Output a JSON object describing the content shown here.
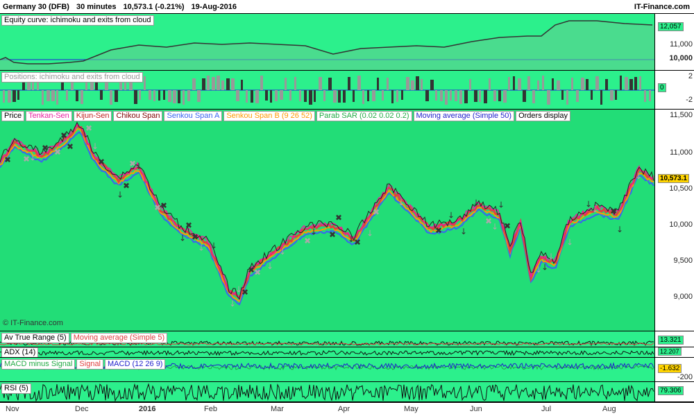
{
  "header": {
    "instrument": "Germany 30 (DFB)",
    "timeframe": "30 minutes",
    "last": "10,573.1 (-0.21%)",
    "date": "19-Aug-2016",
    "brand": "IT-Finance.com"
  },
  "colors": {
    "panel_green": "#2cf08c",
    "price_green": "#22dd77",
    "tenkan": "#e91ea0",
    "kijun": "#e04040",
    "senkou_a": "#3a64f0",
    "senkou_b": "#ff9900",
    "ma": "#1010dd"
  },
  "equity": {
    "label": "Equity curve: ichimoku and exits from cloud",
    "ticks": [
      "11,000",
      "10,000"
    ],
    "last_tag": "12,057"
  },
  "positions": {
    "label": "Positions: ichimoku and exits from cloud",
    "ticks": [
      "2",
      "-2"
    ],
    "last_tag": "0"
  },
  "price": {
    "labels": [
      "Price",
      "Tenkan-Sen",
      "Kijun-Sen",
      "Chikou Span",
      "Senkou Span A",
      "Senkou Span B (9 26 52)",
      "Parab SAR (0.02 0.02 0.2)",
      "Moving average (Simple 50)",
      "Orders display"
    ],
    "ticks": [
      "11,500",
      "11,000",
      "10,500",
      "10,000",
      "9,500",
      "9,000"
    ],
    "last_tag": "10,573.1",
    "watermark": "© IT-Finance.com"
  },
  "atr": {
    "labels": [
      "Av True Range (5)",
      "Moving average (Simple 5)"
    ],
    "last_tag": "13.321"
  },
  "adx": {
    "labels": [
      "ADX (14)"
    ],
    "last_tag": "12.207"
  },
  "macd": {
    "labels": [
      "MACD minus Signal",
      "Signal",
      "MACD (12 26 9)"
    ],
    "ticks": [
      "-200"
    ],
    "last_tag": "-1.632"
  },
  "rsi": {
    "labels": [
      "RSI (5)"
    ],
    "last_tag": "79.306"
  },
  "timeline": [
    "Nov",
    "Dec",
    "2016",
    "Feb",
    "Mar",
    "Apr",
    "May",
    "Jun",
    "Jul",
    "Aug"
  ]
}
